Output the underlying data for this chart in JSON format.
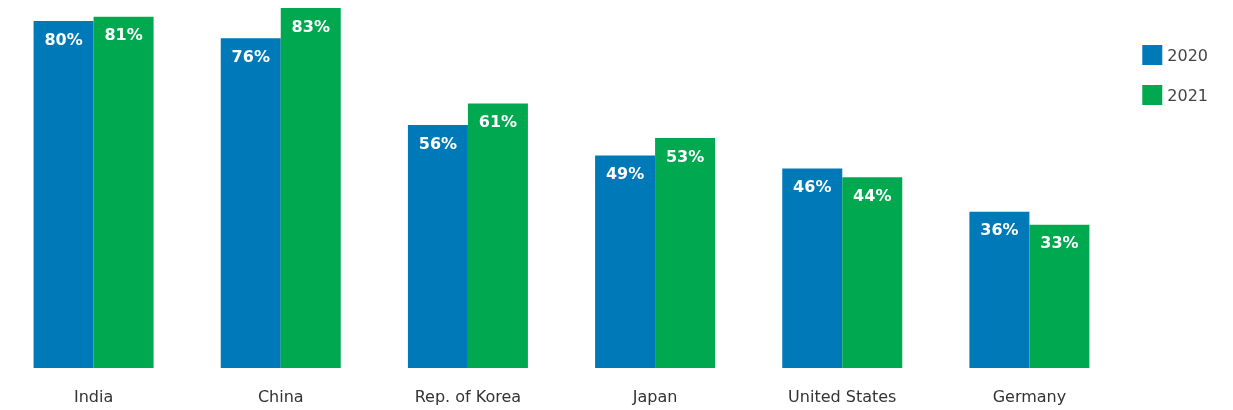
{
  "chart_data": {
    "type": "bar",
    "categories": [
      "India",
      "China",
      "Rep. of Korea",
      "Japan",
      "United States",
      "Germany"
    ],
    "series": [
      {
        "name": "2020",
        "color": "#0079b8",
        "values": [
          80,
          76,
          56,
          49,
          46,
          36
        ],
        "value_labels": [
          "80%",
          "76%",
          "56%",
          "49%",
          "46%",
          "36%"
        ]
      },
      {
        "name": "2021",
        "color": "#00a84f",
        "values": [
          81,
          83,
          61,
          53,
          44,
          33
        ],
        "value_labels": [
          "81%",
          "83%",
          "61%",
          "53%",
          "44%",
          "33%"
        ]
      }
    ],
    "legend": "top right"
  }
}
